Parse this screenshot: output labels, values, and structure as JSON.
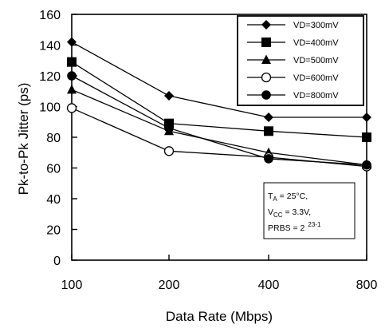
{
  "chart_data": {
    "type": "line",
    "xlabel": "Data Rate (Mbps)",
    "ylabel": "Pk-to-Pk Jitter (ps)",
    "categories": [
      "100",
      "200",
      "400",
      "800"
    ],
    "ylim": [
      0,
      160
    ],
    "yticks": [
      0,
      20,
      40,
      60,
      80,
      100,
      120,
      140,
      160
    ],
    "grid": false,
    "legend_position": "top-right",
    "series": [
      {
        "name": "VD=300mV",
        "marker": "diamond-filled",
        "values": [
          142,
          107,
          93,
          93
        ]
      },
      {
        "name": "VD=400mV",
        "marker": "square-filled",
        "values": [
          129,
          89,
          84,
          80
        ]
      },
      {
        "name": "VD=500mV",
        "marker": "triangle-filled",
        "values": [
          111,
          84,
          70,
          62
        ]
      },
      {
        "name": "VD=600mV",
        "marker": "circle-open",
        "values": [
          99,
          71,
          67,
          61
        ]
      },
      {
        "name": "VD=800mV",
        "marker": "circle-filled",
        "values": [
          120,
          86,
          66,
          62
        ]
      }
    ],
    "annotation": {
      "lines": [
        {
          "main": "T",
          "sub": "A",
          "rest": " = 25°C,"
        },
        {
          "main": "V",
          "sub": "CC",
          "rest": " = 3.3V,"
        },
        {
          "main": "PRBS = 2",
          "sup": "23-1"
        }
      ]
    }
  }
}
